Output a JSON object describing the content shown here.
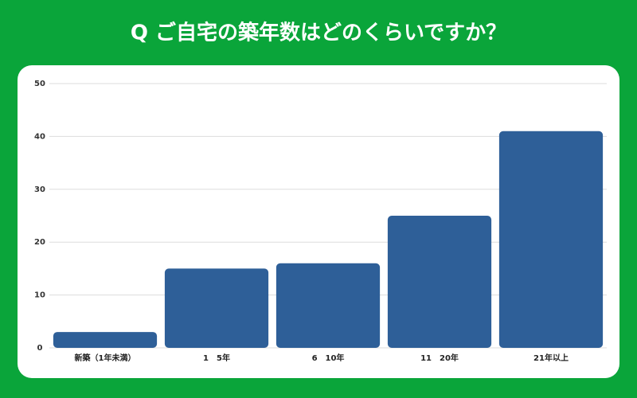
{
  "chart_data": {
    "type": "bar",
    "title": "Q ご自宅の築年数はどのくらいですか？",
    "categories": [
      "新築（1年未満）",
      "1　5年",
      "6　10年",
      "11　20年",
      "21年以上"
    ],
    "values": [
      3,
      15,
      16,
      25,
      41
    ],
    "color": "#2e5f98",
    "ylim": [
      0,
      50
    ],
    "yticks": [
      0,
      10,
      20,
      30,
      40,
      50
    ],
    "grid": true
  }
}
